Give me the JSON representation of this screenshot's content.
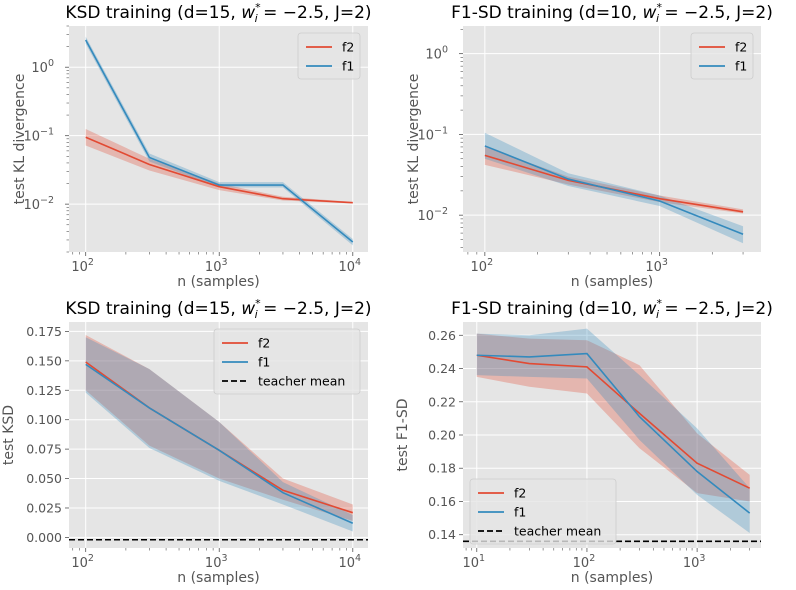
{
  "colors": {
    "f2": "#E24A33",
    "f1": "#348ABD",
    "teacher": "#000000",
    "panel_bg": "#E5E5E5",
    "grid": "#FFFFFF"
  },
  "chart_data": [
    {
      "type": "line",
      "title_prefix": "KSD training (d=15, ",
      "title_suffix": " = −2.5, J=2)",
      "xlabel": "n (samples)",
      "ylabel": "test KL divergence",
      "xscale": "log",
      "yscale": "log",
      "xlim": [
        75,
        13000
      ],
      "ylim": [
        0.002,
        4
      ],
      "xticks": [
        {
          "v": 100,
          "b": "10",
          "e": "2"
        },
        {
          "v": 1000,
          "b": "10",
          "e": "3"
        },
        {
          "v": 10000,
          "b": "10",
          "e": "4"
        }
      ],
      "yticks": [
        {
          "v": 0.01,
          "b": "10",
          "e": "−2"
        },
        {
          "v": 0.1,
          "b": "10",
          "e": "−1"
        },
        {
          "v": 1,
          "b": "10",
          "e": "0"
        }
      ],
      "legend_position": "top-right",
      "series": [
        {
          "name": "f2",
          "x": [
            100,
            300,
            1000,
            3000,
            10000
          ],
          "y": [
            0.095,
            0.038,
            0.018,
            0.012,
            0.0105
          ],
          "lo": [
            0.072,
            0.031,
            0.016,
            0.0113,
            0.0102
          ],
          "hi": [
            0.125,
            0.046,
            0.02,
            0.0128,
            0.0108
          ]
        },
        {
          "name": "f1",
          "x": [
            100,
            300,
            1000,
            3000,
            10000
          ],
          "y": [
            2.5,
            0.048,
            0.019,
            0.019,
            0.0028
          ],
          "lo": [
            2.2,
            0.042,
            0.0175,
            0.0175,
            0.0025
          ],
          "hi": [
            2.8,
            0.055,
            0.021,
            0.021,
            0.0031
          ]
        }
      ]
    },
    {
      "type": "line",
      "title_prefix": "F1-SD training (d=10, ",
      "title_suffix": " = −2.5, J=2)",
      "xlabel": "n (samples)",
      "ylabel": "test KL divergence",
      "xscale": "log",
      "yscale": "log",
      "xlim": [
        75,
        3800
      ],
      "ylim": [
        0.0035,
        2.2
      ],
      "xticks": [
        {
          "v": 100,
          "b": "10",
          "e": "2"
        },
        {
          "v": 1000,
          "b": "10",
          "e": "3"
        }
      ],
      "yticks": [
        {
          "v": 0.01,
          "b": "10",
          "e": "−2"
        },
        {
          "v": 0.1,
          "b": "10",
          "e": "−1"
        },
        {
          "v": 1,
          "b": "10",
          "e": "0"
        }
      ],
      "legend_position": "top-right",
      "series": [
        {
          "name": "f2",
          "x": [
            100,
            300,
            1000,
            3000
          ],
          "y": [
            0.055,
            0.027,
            0.016,
            0.011
          ],
          "lo": [
            0.042,
            0.024,
            0.0145,
            0.0105
          ],
          "hi": [
            0.07,
            0.03,
            0.0175,
            0.0118
          ]
        },
        {
          "name": "f1",
          "x": [
            100,
            300,
            1000,
            3000
          ],
          "y": [
            0.072,
            0.028,
            0.015,
            0.0058
          ],
          "lo": [
            0.05,
            0.023,
            0.013,
            0.0045
          ],
          "hi": [
            0.105,
            0.033,
            0.0175,
            0.0073
          ]
        }
      ]
    },
    {
      "type": "line",
      "title_prefix": "KSD training (d=15, ",
      "title_suffix": " = −2.5, J=2)",
      "xlabel": "n (samples)",
      "ylabel": "test KSD",
      "xscale": "log",
      "yscale": "linear",
      "xlim": [
        75,
        13000
      ],
      "ylim": [
        -0.009,
        0.183
      ],
      "xticks": [
        {
          "v": 100,
          "b": "10",
          "e": "2"
        },
        {
          "v": 1000,
          "b": "10",
          "e": "3"
        },
        {
          "v": 10000,
          "b": "10",
          "e": "4"
        }
      ],
      "yticks": [
        {
          "v": 0,
          "t": "0.000"
        },
        {
          "v": 0.025,
          "t": "0.025"
        },
        {
          "v": 0.05,
          "t": "0.050"
        },
        {
          "v": 0.075,
          "t": "0.075"
        },
        {
          "v": 0.1,
          "t": "0.100"
        },
        {
          "v": 0.125,
          "t": "0.125"
        },
        {
          "v": 0.15,
          "t": "0.150"
        },
        {
          "v": 0.175,
          "t": "0.175"
        }
      ],
      "legend_position": "top-right",
      "series": [
        {
          "name": "f2",
          "x": [
            100,
            300,
            1000,
            3000,
            10000
          ],
          "y": [
            0.149,
            0.11,
            0.074,
            0.04,
            0.021
          ],
          "lo": [
            0.125,
            0.078,
            0.05,
            0.032,
            0.014
          ],
          "hi": [
            0.172,
            0.143,
            0.098,
            0.05,
            0.028
          ]
        },
        {
          "name": "f1",
          "x": [
            100,
            300,
            1000,
            3000,
            10000
          ],
          "y": [
            0.147,
            0.11,
            0.074,
            0.038,
            0.012
          ],
          "lo": [
            0.123,
            0.076,
            0.048,
            0.028,
            0.005
          ],
          "hi": [
            0.17,
            0.143,
            0.098,
            0.047,
            0.019
          ]
        }
      ],
      "teacher": {
        "name": "teacher mean",
        "y": -0.002
      }
    },
    {
      "type": "line",
      "title_prefix": "F1-SD training (d=10, ",
      "title_suffix": " = −2.5, J=2)",
      "xlabel": "n (samples)",
      "ylabel": "test F1-SD",
      "xscale": "log",
      "yscale": "linear",
      "xlim": [
        7.5,
        3800
      ],
      "ylim": [
        0.132,
        0.268
      ],
      "xticks": [
        {
          "v": 10,
          "b": "10",
          "e": "1"
        },
        {
          "v": 100,
          "b": "10",
          "e": "2"
        },
        {
          "v": 1000,
          "b": "10",
          "e": "3"
        }
      ],
      "yticks": [
        {
          "v": 0.14,
          "t": "0.14"
        },
        {
          "v": 0.16,
          "t": "0.16"
        },
        {
          "v": 0.18,
          "t": "0.18"
        },
        {
          "v": 0.2,
          "t": "0.20"
        },
        {
          "v": 0.22,
          "t": "0.22"
        },
        {
          "v": 0.24,
          "t": "0.24"
        },
        {
          "v": 0.26,
          "t": "0.26"
        }
      ],
      "legend_position": "bottom-left",
      "series": [
        {
          "name": "f2",
          "x": [
            10,
            30,
            100,
            300,
            1000,
            3000
          ],
          "y": [
            0.248,
            0.243,
            0.241,
            0.213,
            0.183,
            0.168
          ],
          "lo": [
            0.235,
            0.229,
            0.225,
            0.192,
            0.165,
            0.16
          ],
          "hi": [
            0.261,
            0.258,
            0.257,
            0.242,
            0.201,
            0.176
          ]
        },
        {
          "name": "f1",
          "x": [
            10,
            30,
            100,
            300,
            1000,
            3000
          ],
          "y": [
            0.248,
            0.247,
            0.249,
            0.211,
            0.178,
            0.153
          ],
          "lo": [
            0.236,
            0.235,
            0.234,
            0.197,
            0.164,
            0.141
          ],
          "hi": [
            0.261,
            0.26,
            0.264,
            0.236,
            0.204,
            0.168
          ]
        }
      ],
      "teacher": {
        "name": "teacher mean",
        "y": 0.136
      }
    }
  ]
}
